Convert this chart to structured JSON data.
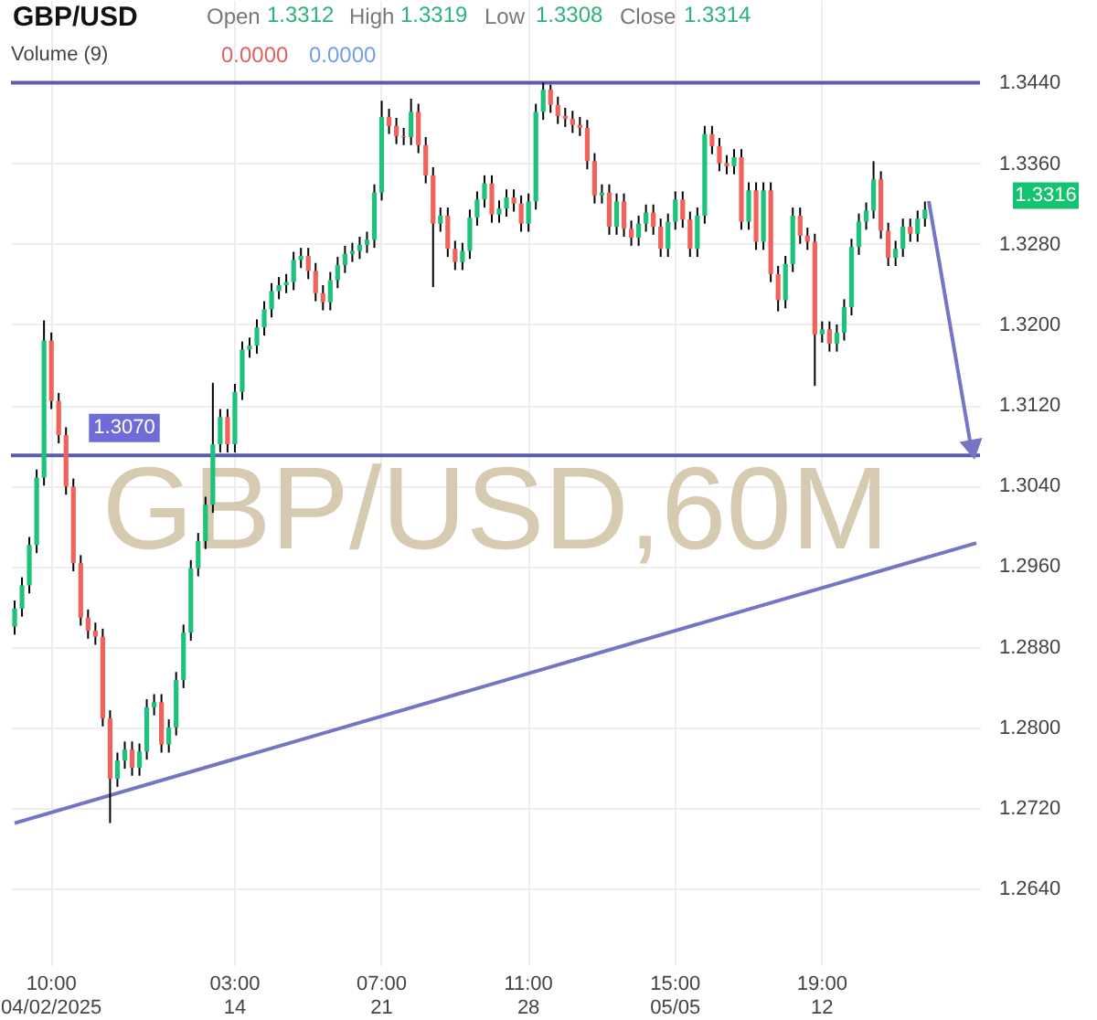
{
  "chart_data": {
    "type": "candlestick",
    "title": "GBP/USD",
    "categories": [
      null,
      null,
      null,
      null,
      null,
      "10:00\n04/02/2025",
      null,
      null,
      null,
      null,
      null,
      null,
      null,
      null,
      null,
      null,
      null,
      null,
      null,
      null,
      null,
      null,
      null,
      null,
      null,
      null,
      null,
      null,
      null,
      null,
      "03:00\n14",
      null,
      null,
      null,
      null,
      null,
      null,
      null,
      null,
      null,
      null,
      null,
      null,
      null,
      null,
      null,
      null,
      null,
      null,
      null,
      "07:00\n21",
      null,
      null,
      null,
      null,
      null,
      null,
      null,
      null,
      null,
      null,
      null,
      null,
      null,
      null,
      null,
      null,
      null,
      null,
      null,
      "11:00\n28",
      null,
      null,
      null,
      null,
      null,
      null,
      null,
      null,
      null,
      null,
      null,
      null,
      null,
      null,
      null,
      null,
      null,
      null,
      null,
      "15:00\n05/05",
      null,
      null,
      null,
      null,
      null,
      null,
      null,
      null,
      null,
      null,
      null,
      null,
      null,
      null,
      null,
      null,
      null,
      null,
      null,
      "19:00\n12",
      null,
      null,
      null,
      null,
      null,
      null,
      null,
      null,
      null,
      null,
      null,
      null,
      null,
      null,
      null,
      null,
      null,
      null,
      null,
      null,
      null
    ],
    "ohlc": [
      [
        1.29,
        1.2926,
        1.2892,
        1.2918
      ],
      [
        1.2918,
        1.2949,
        1.291,
        1.2941
      ],
      [
        1.2941,
        1.2989,
        1.2933,
        1.2981
      ],
      [
        1.2981,
        1.3056,
        1.2973,
        1.3048
      ],
      [
        1.3048,
        1.3204,
        1.304,
        1.3184
      ],
      [
        1.3184,
        1.3192,
        1.3116,
        1.3124
      ],
      [
        1.3124,
        1.3132,
        1.3082,
        1.309
      ],
      [
        1.309,
        1.3098,
        1.3031,
        1.3039
      ],
      [
        1.3039,
        1.3047,
        1.2955,
        1.2963
      ],
      [
        1.2963,
        1.2971,
        1.2901,
        1.2909
      ],
      [
        1.2909,
        1.2917,
        1.2888,
        1.2896
      ],
      [
        1.2896,
        1.2904,
        1.2882,
        1.289
      ],
      [
        1.289,
        1.2898,
        1.2801,
        1.2809
      ],
      [
        1.2809,
        1.2817,
        1.2705,
        1.2749
      ],
      [
        1.2749,
        1.2775,
        1.2741,
        1.2767
      ],
      [
        1.2767,
        1.2786,
        1.2759,
        1.2778
      ],
      [
        1.2778,
        1.2786,
        1.2752,
        1.276
      ],
      [
        1.276,
        1.2784,
        1.2752,
        1.2776
      ],
      [
        1.2776,
        1.2828,
        1.2768,
        1.282
      ],
      [
        1.282,
        1.2833,
        1.2812,
        1.2825
      ],
      [
        1.2825,
        1.2833,
        1.2775,
        1.2783
      ],
      [
        1.2783,
        1.2808,
        1.2775,
        1.28
      ],
      [
        1.28,
        1.2855,
        1.2792,
        1.2847
      ],
      [
        1.2847,
        1.2902,
        1.2839,
        1.2894
      ],
      [
        1.2894,
        1.2966,
        1.2886,
        1.2958
      ],
      [
        1.2958,
        1.2993,
        1.295,
        1.2985
      ],
      [
        1.2985,
        1.3029,
        1.2977,
        1.3021
      ],
      [
        1.3021,
        1.3142,
        1.3013,
        1.3081
      ],
      [
        1.3081,
        1.3116,
        1.3073,
        1.3108
      ],
      [
        1.3108,
        1.3116,
        1.3073,
        1.3081
      ],
      [
        1.3081,
        1.3141,
        1.3073,
        1.3133
      ],
      [
        1.3133,
        1.3183,
        1.3125,
        1.3175
      ],
      [
        1.3175,
        1.3187,
        1.3167,
        1.3179
      ],
      [
        1.3179,
        1.3205,
        1.3171,
        1.3197
      ],
      [
        1.3197,
        1.3223,
        1.3189,
        1.3215
      ],
      [
        1.3215,
        1.3241,
        1.3207,
        1.3233
      ],
      [
        1.3233,
        1.3247,
        1.3225,
        1.3239
      ],
      [
        1.3239,
        1.325,
        1.3231,
        1.3242
      ],
      [
        1.3242,
        1.3272,
        1.3234,
        1.3264
      ],
      [
        1.3264,
        1.3276,
        1.3256,
        1.3268
      ],
      [
        1.3268,
        1.3276,
        1.3245,
        1.3253
      ],
      [
        1.3253,
        1.3261,
        1.3223,
        1.3231
      ],
      [
        1.3231,
        1.3239,
        1.3214,
        1.3222
      ],
      [
        1.3222,
        1.3252,
        1.3214,
        1.3244
      ],
      [
        1.3244,
        1.3267,
        1.3236,
        1.3259
      ],
      [
        1.3259,
        1.3278,
        1.3251,
        1.327
      ],
      [
        1.327,
        1.3281,
        1.3262,
        1.3273
      ],
      [
        1.3273,
        1.3287,
        1.3265,
        1.3279
      ],
      [
        1.3279,
        1.3292,
        1.3271,
        1.3284
      ],
      [
        1.3284,
        1.3339,
        1.3276,
        1.3331
      ],
      [
        1.3331,
        1.3422,
        1.3323,
        1.3406
      ],
      [
        1.3406,
        1.3414,
        1.3389,
        1.3397
      ],
      [
        1.3397,
        1.3405,
        1.3379,
        1.3387
      ],
      [
        1.3387,
        1.3395,
        1.3378,
        1.3386
      ],
      [
        1.3386,
        1.3424,
        1.3378,
        1.3411
      ],
      [
        1.3411,
        1.3419,
        1.337,
        1.3378
      ],
      [
        1.3378,
        1.3386,
        1.334,
        1.3348
      ],
      [
        1.3348,
        1.3356,
        1.3237,
        1.33
      ],
      [
        1.33,
        1.3316,
        1.3292,
        1.3308
      ],
      [
        1.3308,
        1.3316,
        1.3267,
        1.3275
      ],
      [
        1.3275,
        1.3283,
        1.3254,
        1.3262
      ],
      [
        1.3262,
        1.3281,
        1.3254,
        1.3273
      ],
      [
        1.3273,
        1.3314,
        1.3265,
        1.3306
      ],
      [
        1.3306,
        1.3332,
        1.3298,
        1.3324
      ],
      [
        1.3324,
        1.3348,
        1.3316,
        1.334
      ],
      [
        1.334,
        1.3348,
        1.3301,
        1.3309
      ],
      [
        1.3309,
        1.3323,
        1.3301,
        1.3315
      ],
      [
        1.3315,
        1.3334,
        1.3307,
        1.3326
      ],
      [
        1.3326,
        1.3334,
        1.3312,
        1.332
      ],
      [
        1.332,
        1.3328,
        1.3292,
        1.33
      ],
      [
        1.33,
        1.333,
        1.3292,
        1.3322
      ],
      [
        1.3322,
        1.3419,
        1.3314,
        1.3411
      ],
      [
        1.3411,
        1.344,
        1.3403,
        1.3433
      ],
      [
        1.3433,
        1.3438,
        1.341,
        1.3418
      ],
      [
        1.3418,
        1.3426,
        1.3399,
        1.3407
      ],
      [
        1.3407,
        1.3415,
        1.3396,
        1.3404
      ],
      [
        1.3404,
        1.3412,
        1.339,
        1.3398
      ],
      [
        1.3398,
        1.3406,
        1.3387,
        1.3395
      ],
      [
        1.3395,
        1.3403,
        1.3354,
        1.3362
      ],
      [
        1.3362,
        1.337,
        1.332,
        1.3328
      ],
      [
        1.3328,
        1.3339,
        1.332,
        1.3331
      ],
      [
        1.3331,
        1.3339,
        1.3289,
        1.3297
      ],
      [
        1.3297,
        1.333,
        1.3289,
        1.3322
      ],
      [
        1.3322,
        1.333,
        1.3287,
        1.3295
      ],
      [
        1.3295,
        1.3303,
        1.3278,
        1.3286
      ],
      [
        1.3286,
        1.3308,
        1.3278,
        1.33
      ],
      [
        1.33,
        1.3319,
        1.3292,
        1.3311
      ],
      [
        1.3311,
        1.3319,
        1.3289,
        1.3297
      ],
      [
        1.3297,
        1.3305,
        1.3267,
        1.3275
      ],
      [
        1.3275,
        1.331,
        1.3267,
        1.3302
      ],
      [
        1.3302,
        1.3332,
        1.3294,
        1.3324
      ],
      [
        1.3324,
        1.3332,
        1.3296,
        1.3304
      ],
      [
        1.3304,
        1.3312,
        1.3267,
        1.3275
      ],
      [
        1.3275,
        1.3316,
        1.3267,
        1.3308
      ],
      [
        1.3308,
        1.3397,
        1.33,
        1.3389
      ],
      [
        1.3389,
        1.3397,
        1.3369,
        1.3377
      ],
      [
        1.3377,
        1.3385,
        1.3352,
        1.336
      ],
      [
        1.336,
        1.3368,
        1.3349,
        1.3357
      ],
      [
        1.3357,
        1.3374,
        1.3349,
        1.3366
      ],
      [
        1.3366,
        1.3374,
        1.3294,
        1.3302
      ],
      [
        1.3302,
        1.3341,
        1.3294,
        1.3333
      ],
      [
        1.3333,
        1.3341,
        1.3274,
        1.3282
      ],
      [
        1.3282,
        1.3341,
        1.3274,
        1.3333
      ],
      [
        1.3333,
        1.3341,
        1.3242,
        1.325
      ],
      [
        1.325,
        1.3258,
        1.3213,
        1.3224
      ],
      [
        1.3224,
        1.3268,
        1.3216,
        1.326
      ],
      [
        1.326,
        1.3316,
        1.3252,
        1.3308
      ],
      [
        1.3308,
        1.3316,
        1.328,
        1.3288
      ],
      [
        1.3288,
        1.3296,
        1.3274,
        1.3282
      ],
      [
        1.3282,
        1.329,
        1.3139,
        1.319
      ],
      [
        1.319,
        1.3203,
        1.3182,
        1.3195
      ],
      [
        1.3195,
        1.3203,
        1.3173,
        1.3181
      ],
      [
        1.3181,
        1.32,
        1.3173,
        1.3192
      ],
      [
        1.3192,
        1.3225,
        1.3184,
        1.3217
      ],
      [
        1.3217,
        1.3285,
        1.3209,
        1.3277
      ],
      [
        1.3277,
        1.331,
        1.3269,
        1.3302
      ],
      [
        1.3302,
        1.3321,
        1.3294,
        1.3313
      ],
      [
        1.3313,
        1.3362,
        1.3305,
        1.3344
      ],
      [
        1.3344,
        1.3352,
        1.3285,
        1.3293
      ],
      [
        1.3293,
        1.3301,
        1.3258,
        1.3266
      ],
      [
        1.3266,
        1.3283,
        1.3258,
        1.3275
      ],
      [
        1.3275,
        1.3305,
        1.3267,
        1.3297
      ],
      [
        1.3297,
        1.3305,
        1.3282,
        1.329
      ],
      [
        1.329,
        1.3313,
        1.3282,
        1.3305
      ],
      [
        1.3305,
        1.3322,
        1.3297,
        1.3314
      ],
      null,
      null,
      null,
      null,
      null,
      null,
      null
    ],
    "colors": [
      "#1fc27a",
      "#1fc27a",
      "#1fc27a",
      "#1fc27a",
      "#1fc27a",
      "#f0625a",
      "#f0625a",
      "#f0625a",
      "#f0625a",
      "#f0625a",
      "#f0625a",
      "#f0625a",
      "#f0625a",
      "#f0625a",
      "#1fc27a",
      "#1fc27a",
      "#f0625a",
      "#1fc27a",
      "#1fc27a",
      "#1fc27a",
      "#f0625a",
      "#1fc27a",
      "#1fc27a",
      "#1fc27a",
      "#1fc27a",
      "#1fc27a",
      "#1fc27a",
      "#1fc27a",
      "#1fc27a",
      "#f0625a",
      "#1fc27a",
      "#1fc27a",
      "#1fc27a",
      "#1fc27a",
      "#1fc27a",
      "#1fc27a",
      "#1fc27a",
      "#1fc27a",
      "#1fc27a",
      "#1fc27a",
      "#f0625a",
      "#f0625a",
      "#f0625a",
      "#1fc27a",
      "#1fc27a",
      "#1fc27a",
      "#1fc27a",
      "#1fc27a",
      "#1fc27a",
      "#1fc27a",
      "#1fc27a",
      "#f0625a",
      "#f0625a",
      "#f0625a",
      "#1fc27a",
      "#f0625a",
      "#f0625a",
      "#f0625a",
      "#1fc27a",
      "#f0625a",
      "#f0625a",
      "#1fc27a",
      "#1fc27a",
      "#1fc27a",
      "#1fc27a",
      "#f0625a",
      "#1fc27a",
      "#1fc27a",
      "#f0625a",
      "#f0625a",
      "#1fc27a",
      "#1fc27a",
      "#1fc27a",
      "#f0625a",
      "#f0625a",
      "#f0625a",
      "#f0625a",
      "#f0625a",
      "#f0625a",
      "#f0625a",
      "#1fc27a",
      "#f0625a",
      "#1fc27a",
      "#f0625a",
      "#f0625a",
      "#1fc27a",
      "#1fc27a",
      "#f0625a",
      "#f0625a",
      "#1fc27a",
      "#1fc27a",
      "#f0625a",
      "#f0625a",
      "#1fc27a",
      "#1fc27a",
      "#f0625a",
      "#f0625a",
      "#f0625a",
      "#1fc27a",
      "#f0625a",
      "#1fc27a",
      "#f0625a",
      "#1fc27a",
      "#f0625a",
      "#f0625a",
      "#1fc27a",
      "#1fc27a",
      "#f0625a",
      "#f0625a",
      "#f0625a",
      "#1fc27a",
      "#f0625a",
      "#1fc27a",
      "#1fc27a",
      "#1fc27a",
      "#1fc27a",
      "#1fc27a",
      "#1fc27a",
      "#f0625a",
      "#f0625a",
      "#1fc27a",
      "#1fc27a",
      "#f0625a",
      "#1fc27a",
      "#1fc27a",
      null,
      null,
      null,
      null,
      null,
      null,
      null
    ],
    "series": [
      {
        "type": "line",
        "color": "#7575c4",
        "values": [
          1.2705,
          null,
          null,
          null,
          null,
          null,
          null,
          null,
          null,
          null,
          null,
          null,
          null,
          null,
          null,
          null,
          null,
          null,
          null,
          null,
          null,
          null,
          null,
          null,
          null,
          null,
          null,
          null,
          null,
          null,
          null,
          null,
          null,
          null,
          null,
          null,
          null,
          null,
          null,
          null,
          null,
          null,
          null,
          null,
          null,
          null,
          null,
          null,
          null,
          null,
          null,
          null,
          null,
          null,
          null,
          null,
          null,
          null,
          null,
          null,
          null,
          null,
          null,
          null,
          null,
          null,
          null,
          null,
          null,
          null,
          null,
          null,
          null,
          null,
          null,
          null,
          null,
          null,
          null,
          null,
          null,
          null,
          null,
          null,
          null,
          null,
          null,
          null,
          null,
          null,
          null,
          null,
          null,
          null,
          null,
          null,
          null,
          null,
          null,
          null,
          null,
          null,
          null,
          null,
          null,
          null,
          null,
          null,
          null,
          null,
          null,
          null,
          null,
          null,
          null,
          null,
          null,
          null,
          null,
          null,
          null,
          null,
          null,
          null,
          null,
          null,
          null,
          null,
          null,
          null,
          null,
          1.2983
        ]
      }
    ],
    "ref_lines": [
      {
        "axis": "y",
        "value": 1.344,
        "label": null,
        "color": "#5c5cab"
      },
      {
        "axis": "y",
        "value": 1.307,
        "label": "1.3070",
        "color": "#5c5cab"
      }
    ],
    "annotations": [
      "Open 1.3312",
      "High 1.3319",
      "Low 1.3308",
      "Close 1.3314",
      "Volume (9)",
      "0.0000",
      "0.0000",
      "GBP/USD,60M",
      "1.3316"
    ],
    "ylim": [
      1.2564,
      1.3522
    ],
    "yticks": [
      {
        "value": 1.264,
        "label": "1.2640"
      },
      {
        "value": 1.272,
        "label": "1.2720"
      },
      {
        "value": 1.28,
        "label": "1.2800"
      },
      {
        "value": 1.288,
        "label": "1.2880"
      },
      {
        "value": 1.296,
        "label": "1.2960"
      },
      {
        "value": 1.304,
        "label": "1.3040"
      },
      {
        "value": 1.312,
        "label": "1.3120"
      },
      {
        "value": 1.32,
        "label": "1.3200"
      },
      {
        "value": 1.328,
        "label": "1.3280"
      },
      {
        "value": 1.336,
        "label": "1.3360"
      },
      {
        "value": 1.344,
        "label": "1.3440"
      }
    ],
    "grid": true,
    "legend": false
  }
}
